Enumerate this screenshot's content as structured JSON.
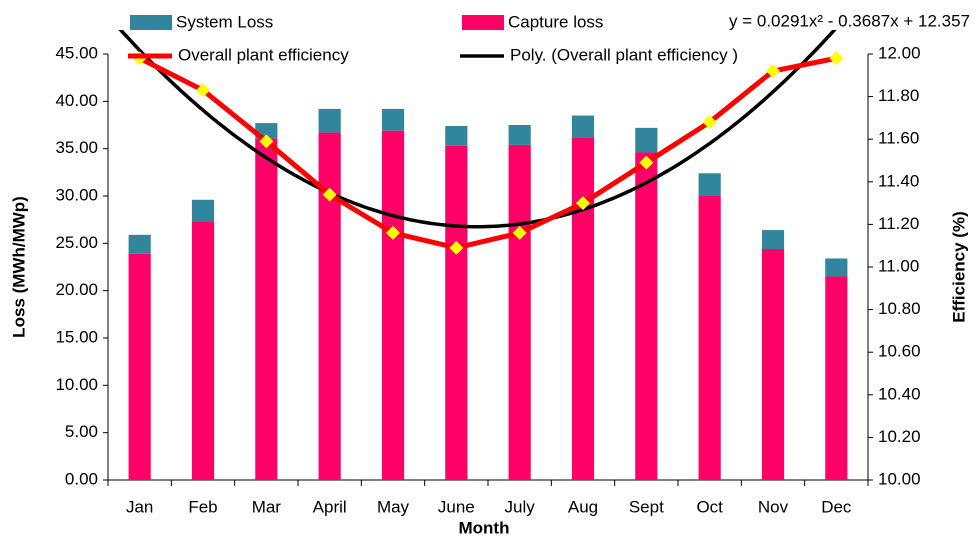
{
  "chart_data": {
    "type": "stacked-bar-line",
    "categories": [
      "Jan",
      "Feb",
      "Mar",
      "April",
      "May",
      "June",
      "July",
      "Aug",
      "Sept",
      "Oct",
      "Nov",
      "Dec"
    ],
    "series": [
      {
        "name": "Capture loss",
        "color": "#ff0066",
        "values": [
          23.9,
          27.3,
          36.1,
          36.7,
          36.9,
          35.3,
          35.4,
          36.2,
          34.6,
          30.0,
          24.4,
          21.5
        ]
      },
      {
        "name": "System Loss",
        "color": "#31859c",
        "values": [
          2.0,
          2.3,
          1.6,
          2.5,
          2.3,
          2.1,
          2.1,
          2.3,
          2.6,
          2.4,
          2.0,
          1.9
        ]
      },
      {
        "name": "Overall plant efficiency",
        "color": "#ff0000",
        "marker_color": "#ffff00",
        "axis": "y2",
        "values": [
          11.98,
          11.83,
          11.59,
          11.34,
          11.16,
          11.09,
          11.16,
          11.3,
          11.49,
          11.68,
          11.92,
          11.98
        ]
      }
    ],
    "trendline": {
      "name": "Poly. (Overall plant efficiency )",
      "color": "#000000",
      "equation": "y = 0.0291x² - 0.3687x + 12.357",
      "coefficients": [
        0.0291,
        -0.3687,
        12.357
      ]
    },
    "xlabel": "Month",
    "ylabel": "Loss (MWh/MWp)",
    "y2label": "Efficiency (%)",
    "ylim": [
      0,
      45
    ],
    "yticks": [
      {
        "value": 0,
        "label": "0.00"
      },
      {
        "value": 5,
        "label": "5.00"
      },
      {
        "value": 10,
        "label": "10.00"
      },
      {
        "value": 15,
        "label": "15.00"
      },
      {
        "value": 20,
        "label": "20.00"
      },
      {
        "value": 25,
        "label": "25.00"
      },
      {
        "value": 30,
        "label": "30.00"
      },
      {
        "value": 35,
        "label": "35.00"
      },
      {
        "value": 40,
        "label": "40.00"
      },
      {
        "value": 45,
        "label": "45.00"
      }
    ],
    "y2lim": [
      10,
      12
    ],
    "y2ticks": [
      {
        "value": 10,
        "label": "10.00"
      },
      {
        "value": 10.2,
        "label": "10.20"
      },
      {
        "value": 10.4,
        "label": "10.40"
      },
      {
        "value": 10.6,
        "label": "10.60"
      },
      {
        "value": 10.8,
        "label": "10.80"
      },
      {
        "value": 11,
        "label": "11.00"
      },
      {
        "value": 11.2,
        "label": "11.20"
      },
      {
        "value": 11.4,
        "label": "11.40"
      },
      {
        "value": 11.6,
        "label": "11.60"
      },
      {
        "value": 11.8,
        "label": "11.80"
      },
      {
        "value": 12,
        "label": "12.00"
      }
    ],
    "grid": false
  }
}
